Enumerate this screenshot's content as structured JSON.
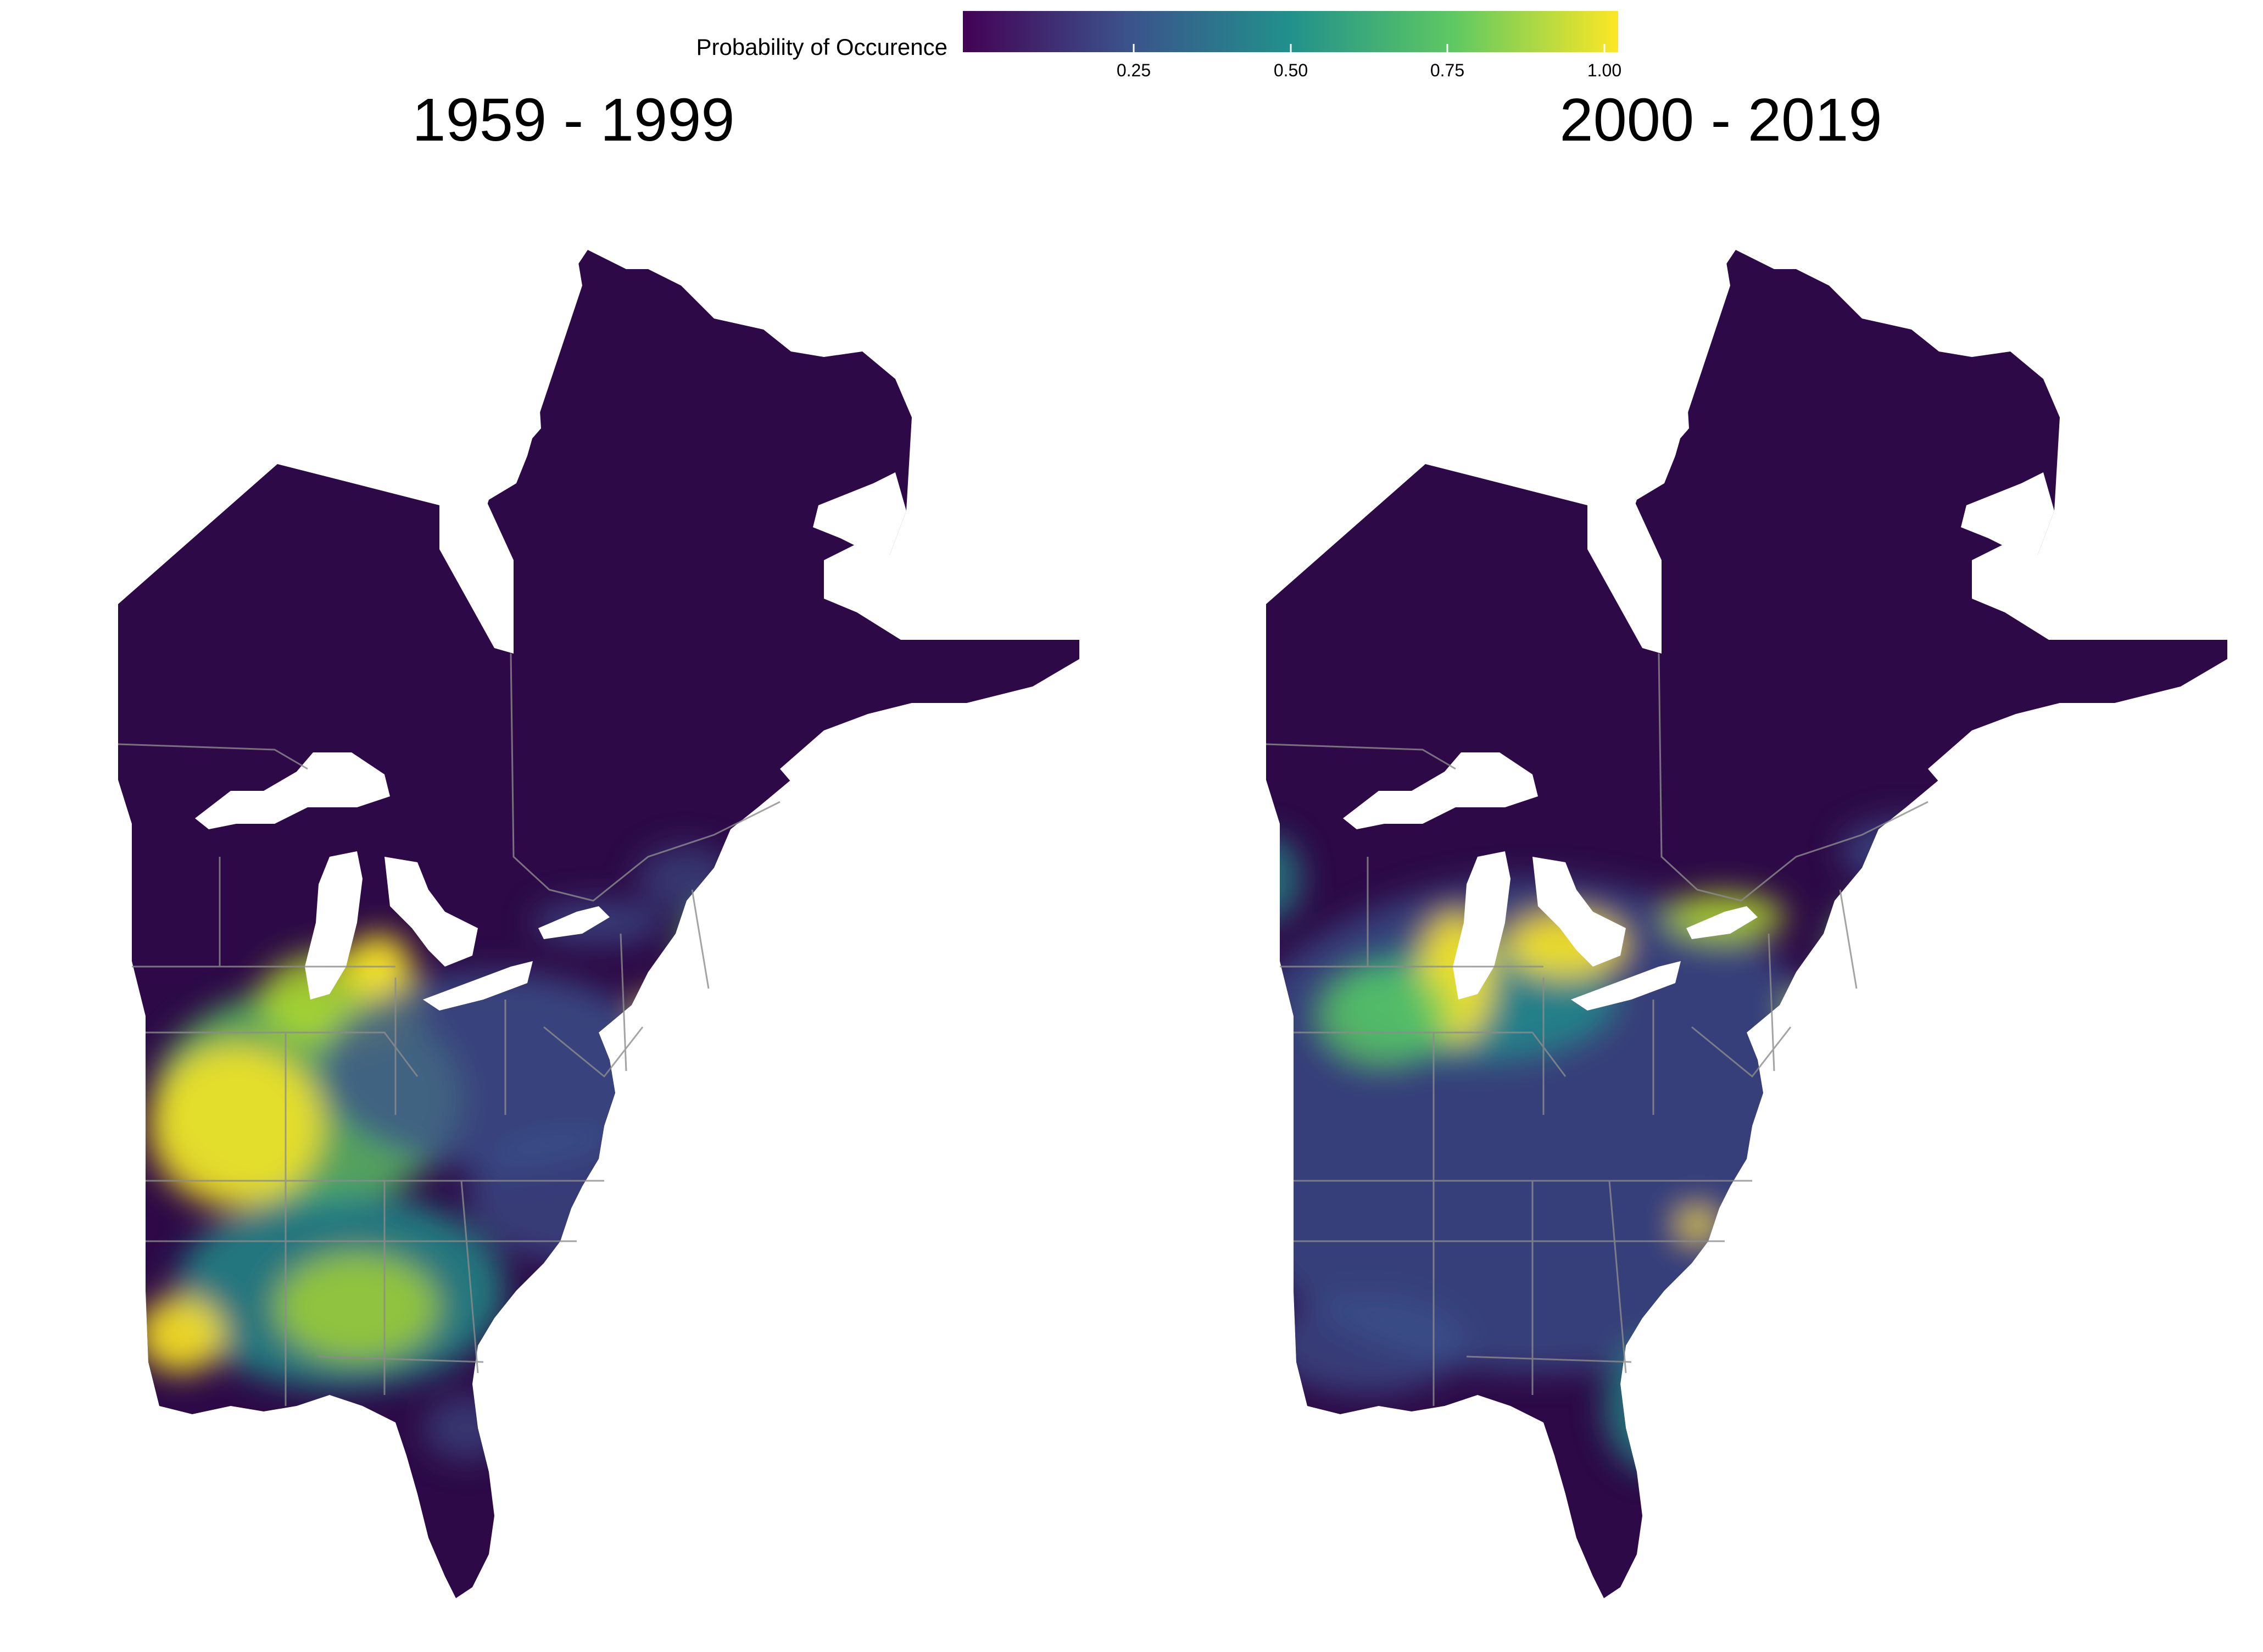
{
  "legend": {
    "title": "Probability of Occurence",
    "ticks": [
      "0.25",
      "0.50",
      "0.75",
      "1.00"
    ],
    "colors": [
      "#440154",
      "#3b528b",
      "#21918c",
      "#5ec962",
      "#fde725"
    ]
  },
  "panels": [
    {
      "title": "1959 - 1999"
    },
    {
      "title": "2000 - 2019"
    }
  ],
  "colors": {
    "low": "#2d0a47",
    "mid": "#3b528b",
    "teal": "#21918c",
    "green": "#5ec962",
    "high": "#fde725",
    "border": "#8c8c8c"
  }
}
